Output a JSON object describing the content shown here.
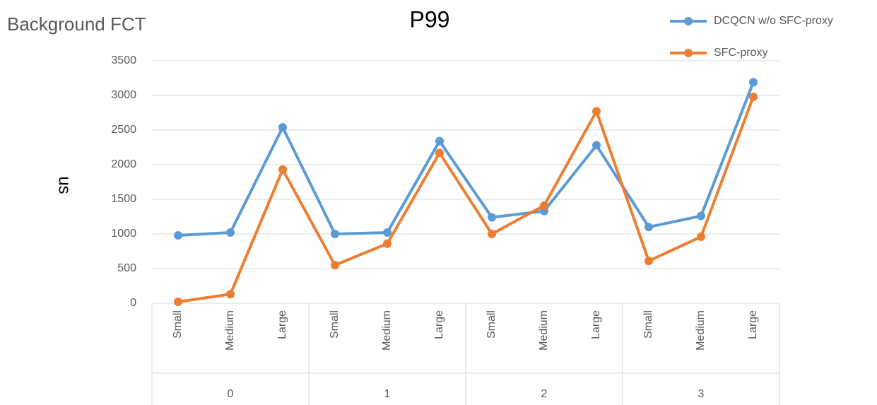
{
  "chart_data": {
    "type": "line",
    "title": "P99",
    "subtitle": "Background FCT",
    "y_label": "us",
    "categories": [
      "Small",
      "Medium",
      "Large",
      "Small",
      "Medium",
      "Large",
      "Small",
      "Medium",
      "Large",
      "Small",
      "Medium",
      "Large"
    ],
    "groups": [
      "0",
      "1",
      "2",
      "3"
    ],
    "series": [
      {
        "name": "DCQCN w/o SFC-proxy",
        "color": "#5b9bd5",
        "values": [
          980,
          1020,
          2540,
          1000,
          1020,
          2340,
          1240,
          1330,
          2280,
          1100,
          1260,
          3190
        ]
      },
      {
        "name": "SFC-proxy",
        "color": "#ed7d31",
        "values": [
          20,
          130,
          1930,
          550,
          860,
          2170,
          1000,
          1410,
          2770,
          610,
          960,
          2980
        ]
      }
    ],
    "ylim": [
      0,
      3500
    ],
    "yticks": [
      0,
      500,
      1000,
      1500,
      2000,
      2500,
      3000,
      3500
    ],
    "grid": true,
    "legend": "top-right"
  }
}
